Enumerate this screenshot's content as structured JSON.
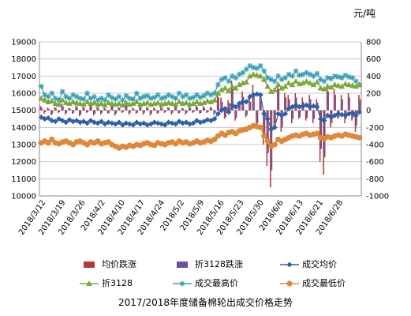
{
  "chart_data": {
    "type": "line",
    "title": "2017/2018年度储备棉轮出成交价格走势",
    "unit_label": "元/吨",
    "y_left": {
      "min": 10000,
      "max": 19000,
      "step": 1000
    },
    "y_right": {
      "min": -1000,
      "max": 800,
      "step": 200
    },
    "x_tick_labels": [
      "2018/3/12",
      "2018/3/19",
      "2018/3/26",
      "2018/4/2",
      "2018/4/10",
      "2018/4/17",
      "2018/4/24",
      "2018/5/2",
      "2018/5/9",
      "2018/5/16",
      "2018/5/23",
      "2018/5/30",
      "2018/6/6",
      "2018/6/13",
      "2018/6/21",
      "2018/6/28"
    ],
    "grid": true,
    "legend_position": "bottom",
    "colors": {
      "avg_change": "#b03a3a",
      "change_3128": "#6a4f9c",
      "avg_price": "#2f5ea8",
      "price_3128": "#7aa83a",
      "max_price": "#3a9fb5",
      "min_price": "#e0883a"
    },
    "legend": [
      {
        "label": "均价跌涨",
        "marker": "bar",
        "color": "#b03a3a"
      },
      {
        "label": "折3128跌涨",
        "marker": "bar",
        "color": "#6a4f9c"
      },
      {
        "label": "成交均价",
        "marker": "diamond",
        "color": "#2f5ea8"
      },
      {
        "label": "折3128",
        "marker": "triangle",
        "color": "#7aa83a"
      },
      {
        "label": "成交最高价",
        "marker": "star",
        "color": "#3a9fb5"
      },
      {
        "label": "成交最低价",
        "marker": "circle",
        "color": "#e0883a"
      }
    ],
    "series": [
      {
        "name": "成交均价",
        "axis": "left",
        "values": [
          14600,
          14500,
          14550,
          14400,
          14350,
          14500,
          14400,
          14300,
          14450,
          14350,
          14400,
          14300,
          14350,
          14250,
          14400,
          14300,
          14250,
          14350,
          14200,
          14300,
          14250,
          14200,
          14300,
          14150,
          14250,
          14200,
          14150,
          14300,
          14200,
          14250,
          14150,
          14200,
          14300,
          14250,
          14200,
          14150,
          14300,
          14250,
          14200,
          14350,
          14250,
          14300,
          14200,
          14250,
          14400,
          14300,
          14350,
          14450,
          14400,
          14500,
          14800,
          15000,
          15100,
          14900,
          15300,
          15200,
          15400,
          15500,
          15500,
          15800,
          15900,
          15950,
          15900,
          14800,
          14500,
          13900,
          14000,
          14800,
          14700,
          14800,
          15100,
          15200,
          15300,
          15200,
          15250,
          15300,
          15200,
          15250,
          15200,
          14500,
          14400,
          14700,
          14600,
          14700,
          14800,
          14750,
          14700,
          14800,
          14850,
          14700,
          14900
        ]
      },
      {
        "name": "折3128",
        "axis": "left",
        "values": [
          15700,
          15600,
          15500,
          15550,
          15400,
          15350,
          15600,
          15450,
          15400,
          15500,
          15450,
          15400,
          15350,
          15500,
          15400,
          15450,
          15350,
          15400,
          15300,
          15450,
          15400,
          15350,
          15400,
          15300,
          15450,
          15350,
          15400,
          15500,
          15350,
          15400,
          15450,
          15350,
          15400,
          15450,
          15350,
          15400,
          15450,
          15400,
          15350,
          15500,
          15400,
          15450,
          15350,
          15400,
          15500,
          15400,
          15450,
          15550,
          15500,
          15600,
          16000,
          16200,
          16300,
          16150,
          16400,
          16300,
          16500,
          16600,
          16650,
          17000,
          17100,
          17050,
          17000,
          16800,
          16400,
          16100,
          16200,
          16500,
          16300,
          16400,
          16600,
          16500,
          16700,
          16550,
          16600,
          16700,
          16600,
          16500,
          16650,
          16300,
          16250,
          16400,
          16350,
          16500,
          16450,
          16400,
          16550,
          16500,
          16450,
          16400,
          16500
        ]
      },
      {
        "name": "成交最高价",
        "axis": "left",
        "values": [
          16400,
          15900,
          15800,
          16000,
          15700,
          15600,
          16100,
          15800,
          15700,
          15900,
          15800,
          15700,
          15650,
          16000,
          15700,
          15800,
          15600,
          15700,
          15600,
          15900,
          15750,
          15650,
          15800,
          15600,
          15850,
          15700,
          15650,
          16000,
          15700,
          15800,
          15850,
          15700,
          15750,
          15900,
          15700,
          15750,
          15900,
          15800,
          15700,
          16000,
          15800,
          15900,
          15700,
          15750,
          15900,
          15750,
          15850,
          16000,
          15900,
          16000,
          16500,
          16800,
          16900,
          16700,
          17000,
          16900,
          17100,
          17200,
          17400,
          17600,
          17500,
          17450,
          17600,
          17300,
          16900,
          16800,
          16700,
          17000,
          16800,
          16900,
          17100,
          17000,
          17300,
          17050,
          17100,
          17200,
          17100,
          17000,
          17150,
          16800,
          16700,
          16900,
          16850,
          17000,
          16950,
          16900,
          17050,
          16950,
          16900,
          16700,
          16500
        ]
      },
      {
        "name": "成交最低价",
        "axis": "left",
        "values": [
          13100,
          13200,
          13100,
          13300,
          13100,
          13050,
          13150,
          13200,
          13100,
          13000,
          13150,
          13200,
          13100,
          13000,
          13150,
          13100,
          13200,
          13050,
          13100,
          13150,
          13000,
          12900,
          12800,
          12900,
          12850,
          12950,
          12900,
          13000,
          12950,
          13050,
          13100,
          13000,
          12950,
          13100,
          13050,
          13000,
          13100,
          13150,
          13050,
          13200,
          13100,
          13150,
          13050,
          13100,
          13200,
          13100,
          13150,
          13250,
          13200,
          13300,
          13500,
          13650,
          13550,
          13700,
          13750,
          13650,
          13800,
          13850,
          13900,
          14000,
          14100,
          14050,
          14000,
          13500,
          13200,
          12900,
          13000,
          13300,
          13200,
          13300,
          13400,
          13500,
          13550,
          13500,
          13600,
          13650,
          13550,
          13600,
          13650,
          13400,
          13350,
          13450,
          13400,
          13500,
          13550,
          13500,
          13600,
          13550,
          13500,
          13450,
          13400
        ]
      },
      {
        "name": "均价跌涨",
        "axis": "right",
        "type": "bar",
        "values": [
          50,
          -40,
          30,
          -60,
          40,
          -30,
          80,
          -50,
          30,
          -40,
          60,
          -70,
          40,
          -30,
          80,
          -60,
          40,
          -50,
          30,
          -40,
          70,
          -60,
          40,
          -30,
          90,
          -50,
          30,
          -40,
          60,
          -50,
          40,
          -60,
          30,
          -40,
          50,
          -30,
          40,
          -50,
          60,
          -40,
          30,
          -50,
          40,
          -30,
          60,
          -40,
          50,
          -30,
          40,
          -50,
          200,
          150,
          -100,
          120,
          350,
          -120,
          100,
          220,
          -80,
          150,
          300,
          -200,
          160,
          -400,
          -650,
          -900,
          -200,
          300,
          -250,
          200,
          180,
          -150,
          200,
          -100,
          150,
          -120,
          180,
          -150,
          130,
          -600,
          -750,
          300,
          -200,
          250,
          -100,
          180,
          -150,
          200,
          -120,
          -250,
          180
        ]
      },
      {
        "name": "折3128跌涨",
        "axis": "right",
        "type": "bar",
        "values": [
          30,
          -20,
          20,
          -40,
          30,
          -20,
          50,
          -30,
          20,
          -30,
          40,
          -50,
          30,
          -20,
          50,
          -40,
          30,
          -30,
          20,
          -30,
          50,
          -40,
          30,
          -20,
          60,
          -30,
          20,
          -30,
          40,
          -30,
          30,
          -40,
          20,
          -30,
          30,
          -20,
          30,
          -30,
          40,
          -30,
          20,
          -30,
          30,
          -20,
          40,
          -30,
          30,
          -20,
          30,
          -30,
          150,
          100,
          -80,
          90,
          250,
          -90,
          80,
          160,
          -60,
          100,
          200,
          -150,
          120,
          -300,
          -500,
          -700,
          -150,
          250,
          -200,
          150,
          130,
          -100,
          150,
          -80,
          100,
          -90,
          130,
          -100,
          90,
          -450,
          -550,
          220,
          -150,
          180,
          -80,
          130,
          -100,
          150,
          -90,
          -180,
          130
        ]
      }
    ]
  }
}
